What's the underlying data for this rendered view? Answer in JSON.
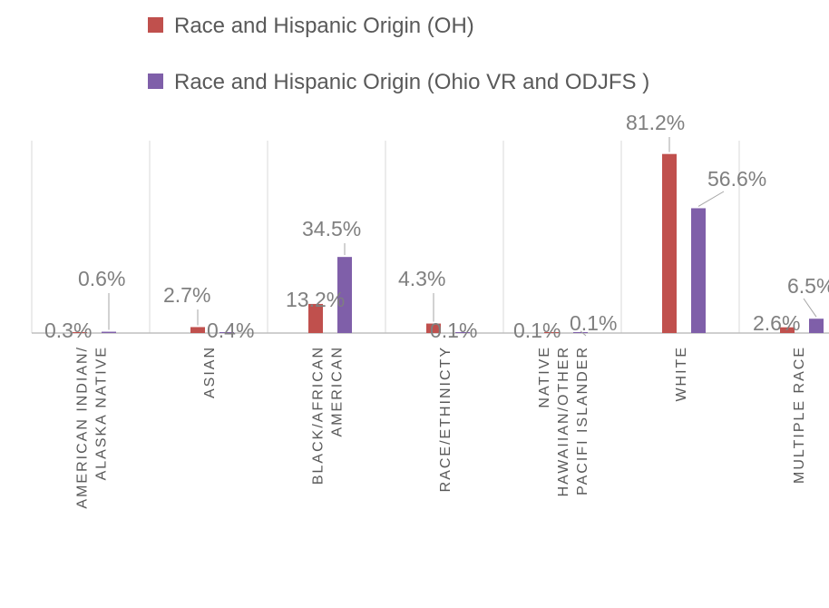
{
  "chart_data": {
    "type": "bar",
    "title": "",
    "xlabel": "",
    "ylabel": "",
    "ylim": [
      0,
      100
    ],
    "grid": "vertical separators between categories",
    "legend_position": "top",
    "categories": [
      [
        "AMERICAN INDIAN/",
        "ALASKA NATIVE"
      ],
      [
        "ASIAN"
      ],
      [
        "BLACK/AFRICAN",
        "AMERICAN"
      ],
      [
        "RACE/ETHINICTY"
      ],
      [
        "NATIVE",
        "HAWAIIAN/OTHER",
        "PACIFI ISLANDER"
      ],
      [
        "WHITE"
      ],
      [
        "MULTIPLE RACE"
      ]
    ],
    "series": [
      {
        "name": "Race and Hispanic Origin (OH)",
        "color": "#c0504d",
        "values": [
          0.3,
          2.7,
          13.2,
          4.3,
          0.1,
          81.2,
          2.6
        ],
        "labels": [
          "0.3%",
          "2.7%",
          "13.2%",
          "4.3%",
          "0.1%",
          "81.2%",
          "2.6%"
        ]
      },
      {
        "name": "Race and Hispanic Origin (Ohio VR and ODJFS )",
        "color": "#7f5fa9",
        "values": [
          0.6,
          0.4,
          34.5,
          0.1,
          0.1,
          56.6,
          6.5
        ],
        "labels": [
          "0.6%",
          "0.4%",
          "34.5%",
          "0.1%",
          "0.1%",
          "56.6%",
          "6.5%"
        ]
      }
    ]
  }
}
